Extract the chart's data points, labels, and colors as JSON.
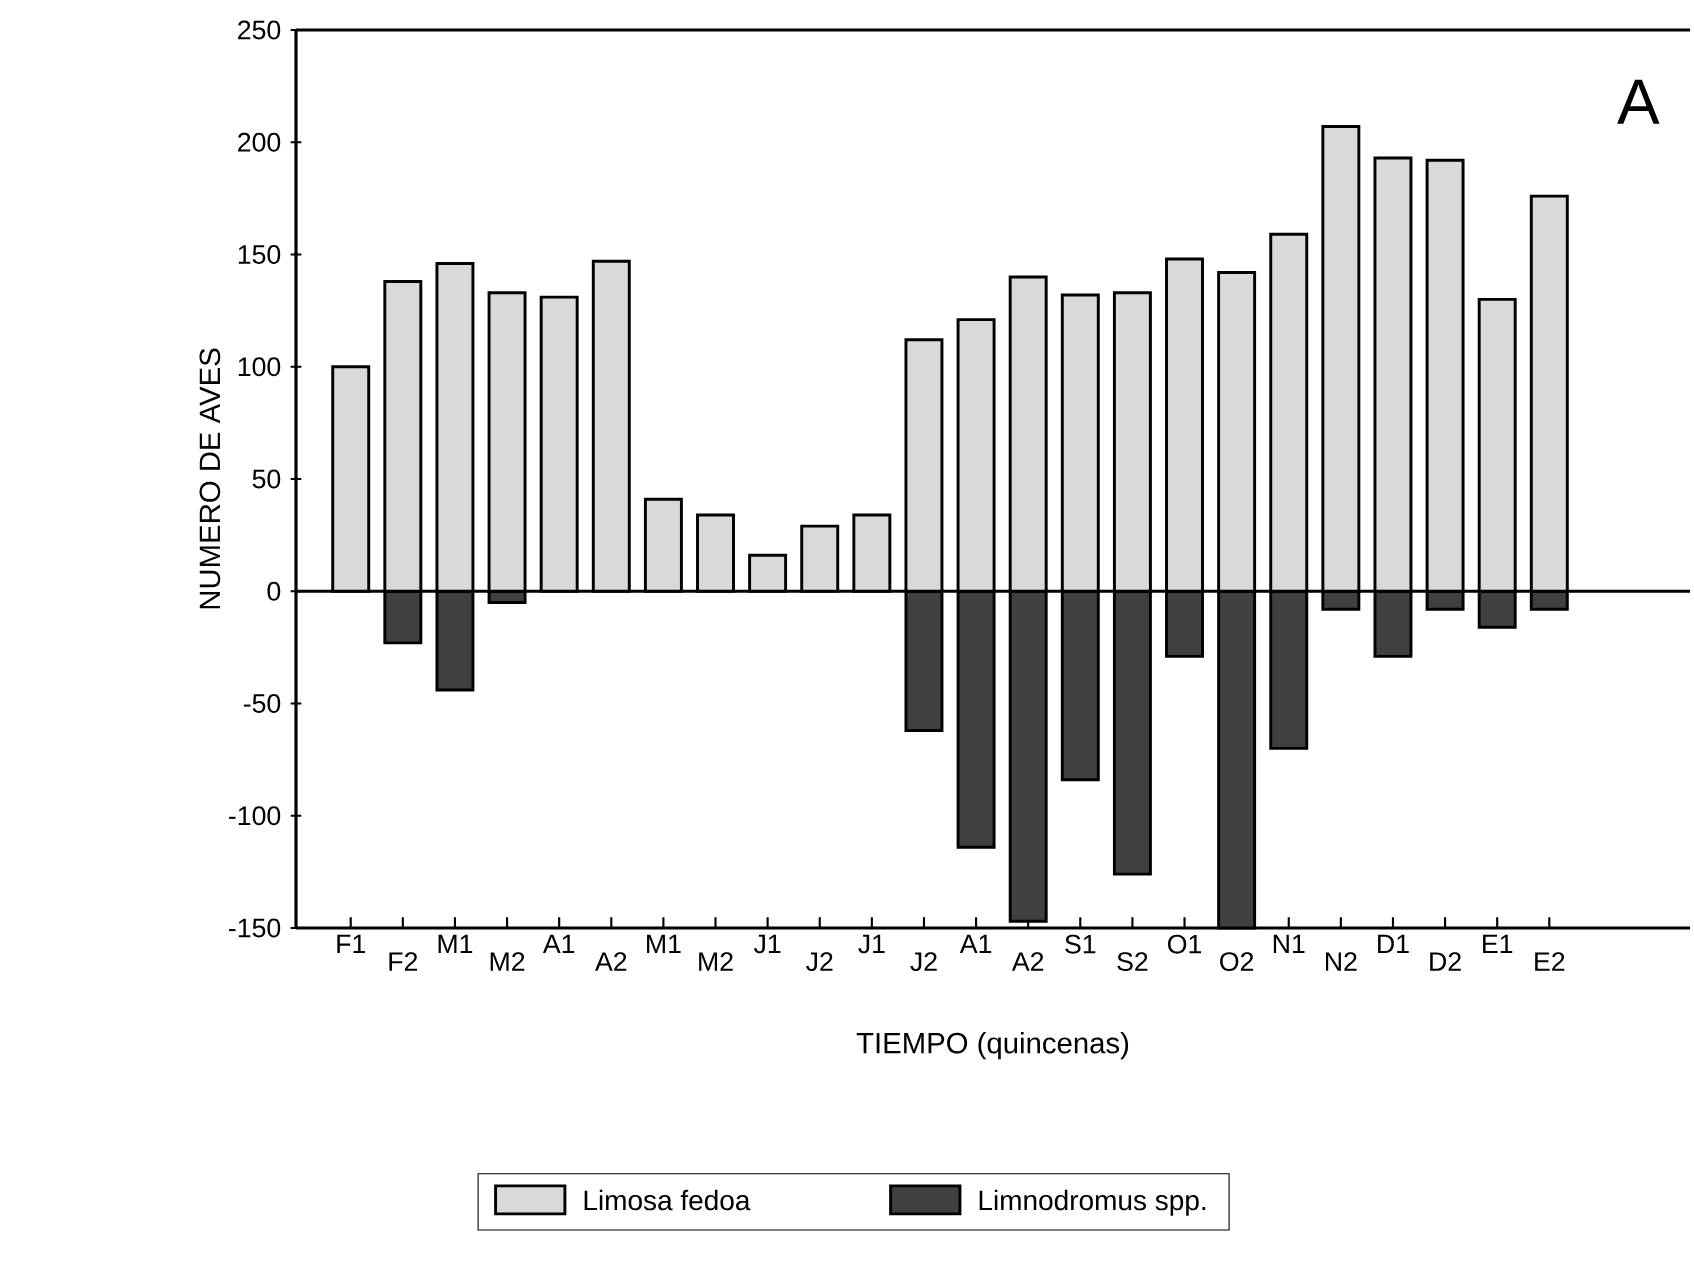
{
  "chart_data": {
    "type": "bar",
    "xlabel": "TIEMPO (quincenas)",
    "ylabel": "NUMERO DE AVES",
    "categories": [
      "F1",
      "F2",
      "M1",
      "M2",
      "A1",
      "A2",
      "M1",
      "M2",
      "J1",
      "J2",
      "J1",
      "J2",
      "A1",
      "A2",
      "S1",
      "S2",
      "O1",
      "O2",
      "N1",
      "N2",
      "D1",
      "D2",
      "E1",
      "E2"
    ],
    "series": [
      {
        "name": "Limosa fedoa",
        "color": "#d9d9d9",
        "values": [
          100,
          138,
          146,
          133,
          131,
          147,
          41,
          34,
          16,
          29,
          34,
          112,
          121,
          140,
          132,
          133,
          148,
          142,
          159,
          207,
          193,
          192,
          130,
          176
        ]
      },
      {
        "name": "Limnodromus spp.",
        "color": "#404040",
        "values": [
          null,
          -23,
          -44,
          -5,
          null,
          null,
          null,
          null,
          null,
          null,
          null,
          -62,
          -114,
          -147,
          -84,
          -126,
          -29,
          -150,
          -70,
          -8,
          -29,
          -8,
          -16,
          -8
        ]
      }
    ],
    "ylim": [
      -150,
      250
    ],
    "yticks": [
      -150,
      -100,
      -50,
      0,
      50,
      100,
      150,
      200,
      250
    ],
    "legend": "bottom",
    "stacked": true,
    "annotations": [
      "A"
    ]
  }
}
